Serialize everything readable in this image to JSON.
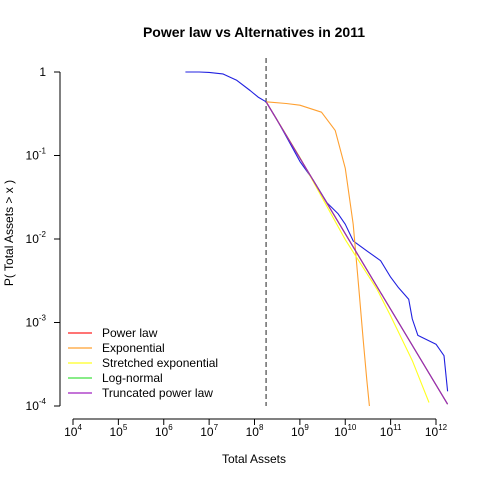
{
  "chart_data": {
    "type": "line",
    "title": "Power law vs Alternatives in 2011",
    "xlabel": "Total Assets",
    "ylabel": "P( Total Assets > x )",
    "x_scale": "log10",
    "y_scale": "log10",
    "xlim": [
      8000,
      2000000000000
    ],
    "ylim": [
      0.0001,
      1.1
    ],
    "x_ticks": [
      {
        "base": "10",
        "exp": "4",
        "value": 10000
      },
      {
        "base": "10",
        "exp": "5",
        "value": 100000
      },
      {
        "base": "10",
        "exp": "6",
        "value": 1000000
      },
      {
        "base": "10",
        "exp": "7",
        "value": 10000000
      },
      {
        "base": "10",
        "exp": "8",
        "value": 100000000
      },
      {
        "base": "10",
        "exp": "9",
        "value": 1000000000
      },
      {
        "base": "10",
        "exp": "10",
        "value": 10000000000
      },
      {
        "base": "10",
        "exp": "11",
        "value": 100000000000
      },
      {
        "base": "10",
        "exp": "12",
        "value": 1000000000000
      }
    ],
    "y_ticks": [
      {
        "base": "1",
        "exp": "",
        "value": 1
      },
      {
        "base": "10",
        "exp": "-1",
        "value": 0.1
      },
      {
        "base": "10",
        "exp": "-2",
        "value": 0.01
      },
      {
        "base": "10",
        "exp": "-3",
        "value": 0.001
      },
      {
        "base": "10",
        "exp": "-4",
        "value": 0.0001
      }
    ],
    "xmin_marker": 180000000,
    "legend_position": "bottom-left",
    "empirical": {
      "color": "#2020e0",
      "x": [
        3000000,
        6000000,
        10000000,
        20000000,
        40000000,
        80000000,
        120000000,
        180000000,
        300000000,
        500000000,
        1000000000,
        2000000000,
        4000000000,
        7000000000,
        10000000000,
        15000000000,
        30000000000,
        60000000000,
        100000000000,
        150000000000,
        250000000000,
        300000000000,
        400000000000,
        1000000000000,
        1500000000000,
        1800000000000
      ],
      "y": [
        1,
        1,
        0.99,
        0.95,
        0.8,
        0.6,
        0.5,
        0.44,
        0.28,
        0.17,
        0.085,
        0.05,
        0.027,
        0.02,
        0.015,
        0.0095,
        0.0072,
        0.0055,
        0.0035,
        0.0026,
        0.0019,
        0.0011,
        0.0007,
        0.00055,
        0.0004,
        0.00015
      ]
    },
    "series": [
      {
        "name": "Power law",
        "color": "#ff2020",
        "x": [
          180000000,
          1800000000000
        ],
        "y": [
          0.44,
          0.000105
        ]
      },
      {
        "name": "Exponential",
        "color": "#ffa030",
        "x": [
          180000000,
          500000000,
          1000000000,
          3000000000,
          6000000000,
          10000000000,
          15000000000,
          20000000000,
          25000000000,
          30000000000,
          34000000000
        ],
        "y": [
          0.44,
          0.42,
          0.4,
          0.33,
          0.2,
          0.07,
          0.015,
          0.0025,
          0.0006,
          0.0002,
          0.0001
        ]
      },
      {
        "name": "Stretched exponential",
        "color": "#ffff20",
        "x": [
          180000000,
          1000000000,
          10000000000,
          50000000000,
          100000000000,
          300000000000,
          700000000000
        ],
        "y": [
          0.44,
          0.095,
          0.0098,
          0.0025,
          0.0012,
          0.00035,
          0.00011
        ]
      },
      {
        "name": "Log-normal",
        "color": "#40e040",
        "x": [
          180000000,
          1800000000000
        ],
        "y": [
          0.44,
          0.000105
        ]
      },
      {
        "name": "Truncated power law",
        "color": "#a020c0",
        "x": [
          180000000,
          1800000000000
        ],
        "y": [
          0.44,
          0.000105
        ]
      }
    ]
  }
}
